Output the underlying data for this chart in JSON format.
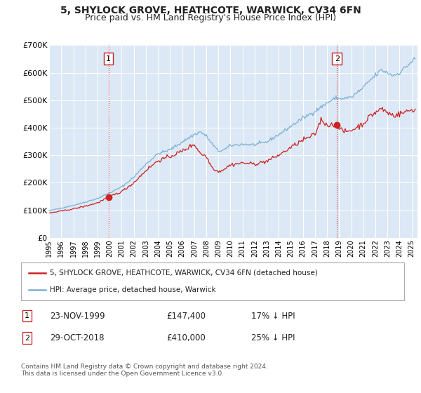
{
  "title": "5, SHYLOCK GROVE, HEATHCOTE, WARWICK, CV34 6FN",
  "subtitle": "Price paid vs. HM Land Registry's House Price Index (HPI)",
  "title_fontsize": 10,
  "subtitle_fontsize": 9,
  "background_color": "#ffffff",
  "plot_bg_color": "#dce8f5",
  "grid_color": "#ffffff",
  "hpi_color": "#7ab0d4",
  "price_color": "#cc2222",
  "vline_color": "#cc2222",
  "ylim": [
    0,
    700000
  ],
  "yticks": [
    0,
    100000,
    200000,
    300000,
    400000,
    500000,
    600000,
    700000
  ],
  "ytick_labels": [
    "£0",
    "£100K",
    "£200K",
    "£300K",
    "£400K",
    "£500K",
    "£600K",
    "£700K"
  ],
  "legend1_label": "5, SHYLOCK GROVE, HEATHCOTE, WARWICK, CV34 6FN (detached house)",
  "legend2_label": "HPI: Average price, detached house, Warwick",
  "purchase1_date": 1999.9,
  "purchase1_price": 147400,
  "purchase2_date": 2018.83,
  "purchase2_price": 410000,
  "xmin": 1995.0,
  "xmax": 2025.5,
  "copyright": "Contains HM Land Registry data © Crown copyright and database right 2024.\nThis data is licensed under the Open Government Licence v3.0."
}
